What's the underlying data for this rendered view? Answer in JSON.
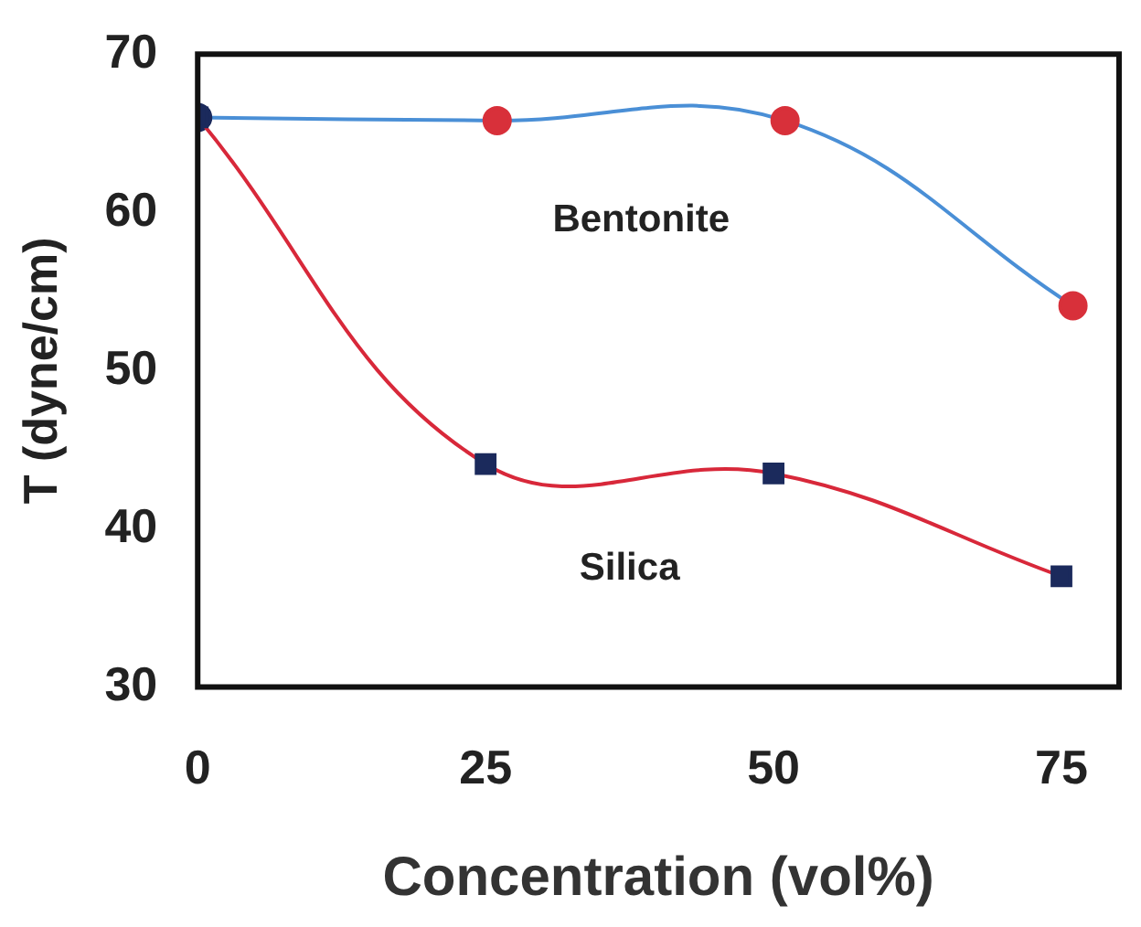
{
  "chart_data": {
    "type": "line",
    "xlabel": "Concentration (vol%)",
    "ylabel": "T (dyne/cm)",
    "xlim": [
      0,
      80
    ],
    "xticks": [
      0,
      25,
      50,
      75
    ],
    "ylim": [
      30,
      70
    ],
    "yticks": [
      30,
      40,
      50,
      60,
      70
    ],
    "grid": false,
    "legend": false,
    "series": [
      {
        "name": "Bentonite",
        "color": "#4a8fd6",
        "marker": "circle",
        "colors": [
          "#1b2a5c",
          "#d8303a",
          "#d8303a",
          "#d8303a"
        ],
        "x": [
          0,
          26,
          51,
          76
        ],
        "values": [
          66,
          65.8,
          65.8,
          54.1
        ]
      },
      {
        "name": "Silica",
        "color": "#d8283a",
        "marker": "square",
        "colors": [
          "#1b2a5c",
          "#1b2a5c",
          "#1b2a5c",
          "#1b2a5c"
        ],
        "x": [
          0,
          25,
          50,
          75
        ],
        "values": [
          66,
          44.1,
          43.5,
          37
        ]
      }
    ]
  }
}
